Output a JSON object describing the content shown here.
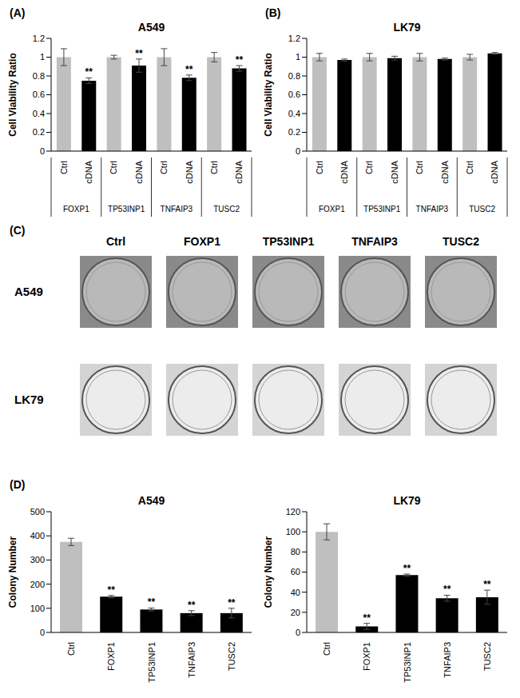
{
  "chart_data": [
    {
      "type": "bar",
      "panel_label": "(A)",
      "title": "A549",
      "y_label": "Cell Viability Ratio",
      "categories": [
        "Ctrl",
        "cDNA",
        "Ctrl",
        "cDNA",
        "Ctrl",
        "cDNA",
        "Ctrl",
        "cDNA"
      ],
      "groups": [
        "FOXP1",
        "TP53INP1",
        "TNFAIP3",
        "TUSC2"
      ],
      "values": [
        1.0,
        0.75,
        1.0,
        0.91,
        1.0,
        0.78,
        1.0,
        0.88
      ],
      "errors": [
        0.09,
        0.03,
        0.02,
        0.07,
        0.09,
        0.03,
        0.05,
        0.03
      ],
      "annotations": [
        null,
        "**",
        null,
        "**",
        null,
        "**",
        null,
        "**"
      ],
      "colors": [
        "#bfbfbf",
        "#000000",
        "#bfbfbf",
        "#000000",
        "#bfbfbf",
        "#000000",
        "#bfbfbf",
        "#000000"
      ],
      "ylim": [
        0,
        1.2
      ],
      "yticks": [
        0,
        0.2,
        0.4,
        0.6,
        0.8,
        1,
        1.2
      ],
      "grid": false
    },
    {
      "type": "bar",
      "panel_label": "(B)",
      "title": "LK79",
      "y_label": "Cell Viability Ratio",
      "categories": [
        "Ctrl",
        "cDNA",
        "Ctrl",
        "cDNA",
        "Ctrl",
        "cDNA",
        "Ctrl",
        "cDNA"
      ],
      "groups": [
        "FOXP1",
        "TP53INP1",
        "TNFAIP3",
        "TUSC2"
      ],
      "values": [
        1.0,
        0.97,
        1.0,
        0.99,
        1.0,
        0.98,
        1.0,
        1.04
      ],
      "errors": [
        0.04,
        0.01,
        0.04,
        0.02,
        0.04,
        0.01,
        0.03,
        0.01
      ],
      "colors": [
        "#bfbfbf",
        "#000000",
        "#bfbfbf",
        "#000000",
        "#bfbfbf",
        "#000000",
        "#bfbfbf",
        "#000000"
      ],
      "ylim": [
        0,
        1.2
      ],
      "yticks": [
        0,
        0.2,
        0.4,
        0.6,
        0.8,
        1,
        1.2
      ],
      "grid": false
    },
    {
      "type": "bar",
      "panel_label": "(D)",
      "title": "A549",
      "y_label": "Colony Number",
      "categories": [
        "Ctrl",
        "FOXP1",
        "TP53INP1",
        "TNFAIP3",
        "TUSC2"
      ],
      "values": [
        375,
        148,
        95,
        80,
        80
      ],
      "errors": [
        15,
        5,
        6,
        10,
        20
      ],
      "annotations": [
        null,
        "**",
        "**",
        "**",
        "**"
      ],
      "colors": [
        "#bfbfbf",
        "#000000",
        "#000000",
        "#000000",
        "#000000"
      ],
      "ylim": [
        0,
        500
      ],
      "yticks": [
        0,
        100,
        200,
        300,
        400,
        500
      ],
      "grid": false
    },
    {
      "type": "bar",
      "title": "LK79",
      "y_label": "Colony Number",
      "categories": [
        "Ctrl",
        "FOXP1",
        "TP53INP1",
        "TNFAIP3",
        "TUSC2"
      ],
      "values": [
        100,
        6,
        57,
        34,
        35
      ],
      "errors": [
        8,
        3,
        1,
        3,
        7
      ],
      "annotations": [
        null,
        "**",
        "**",
        "**",
        "**"
      ],
      "colors": [
        "#bfbfbf",
        "#000000",
        "#000000",
        "#000000",
        "#000000"
      ],
      "ylim": [
        0,
        120
      ],
      "yticks": [
        0,
        20,
        40,
        60,
        80,
        100,
        120
      ],
      "grid": false
    }
  ],
  "panel_c": {
    "panel_label": "(C)",
    "columns": [
      "Ctrl",
      "FOXP1",
      "TP53INP1",
      "TNFAIP3",
      "TUSC2"
    ],
    "rows": [
      "A549",
      "LK79"
    ]
  }
}
